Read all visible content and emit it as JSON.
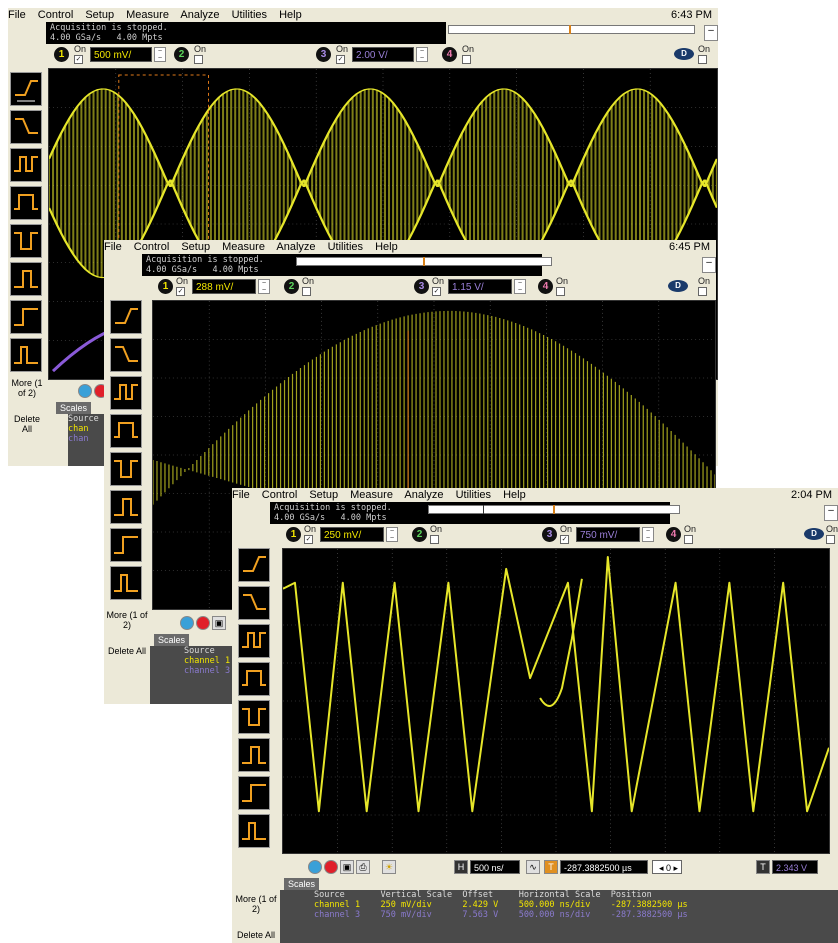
{
  "menu": [
    "File",
    "Control",
    "Setup",
    "Measure",
    "Analyze",
    "Utilities",
    "Help"
  ],
  "windows": {
    "w1": {
      "clock": "6:43 PM",
      "status_line1": "Acquisition is stopped.",
      "status_line2": "4.00 GSa/s   4.00 Mpts",
      "ch1_scale": "500 mV/",
      "ch3_scale": "2.00 V/",
      "on_label": "On",
      "more_label": "More (1 of 2)",
      "delete_label": "Delete All",
      "scales_tab": "Scales",
      "source_label": "Source",
      "chan1": "chan",
      "chan3": "chan"
    },
    "w2": {
      "clock": "6:45 PM",
      "status_line1": "Acquisition is stopped.",
      "status_line2": "4.00 GSa/s   4.00 Mpts",
      "ch1_scale": "288 mV/",
      "ch3_scale": "1.15 V/",
      "on_label": "On",
      "more_label": "More (1 of 2)",
      "delete_label": "Delete All",
      "scales_tab": "Scales",
      "source_label": "Source",
      "chan1": "channel 1",
      "chan3": "channel 3"
    },
    "w3": {
      "clock": "2:04 PM",
      "status_line1": "Acquisition is stopped.",
      "status_line2": "4.00 GSa/s   4.00 Mpts",
      "ch1_scale": "250 mV/",
      "ch3_scale": "750 mV/",
      "on_label": "On",
      "more_label": "More (1 of 2)",
      "delete_label": "Delete All",
      "scales_tab": "Scales",
      "timebase": "500 ns/",
      "position": "-287.3882500 µs",
      "zoom": "0",
      "trigger_level": "2.343 V",
      "measure_header": "Source       Vertical Scale  Offset     Horizontal Scale  Position",
      "measure_row1": "channel 1    250 mV/div      2.429 V    500.000 ns/div    -287.3882500 µs",
      "measure_row3": "channel 3    750 mV/div      7.563 V    500.000 ns/div    -287.3882500 µs"
    }
  },
  "colors": {
    "trace_ch1": "#e6e62a",
    "trace_ch3": "#8a5ad8",
    "grid": "#5a5a5a",
    "cursor": "#e07a1a",
    "chrome": "#ece9d8"
  }
}
